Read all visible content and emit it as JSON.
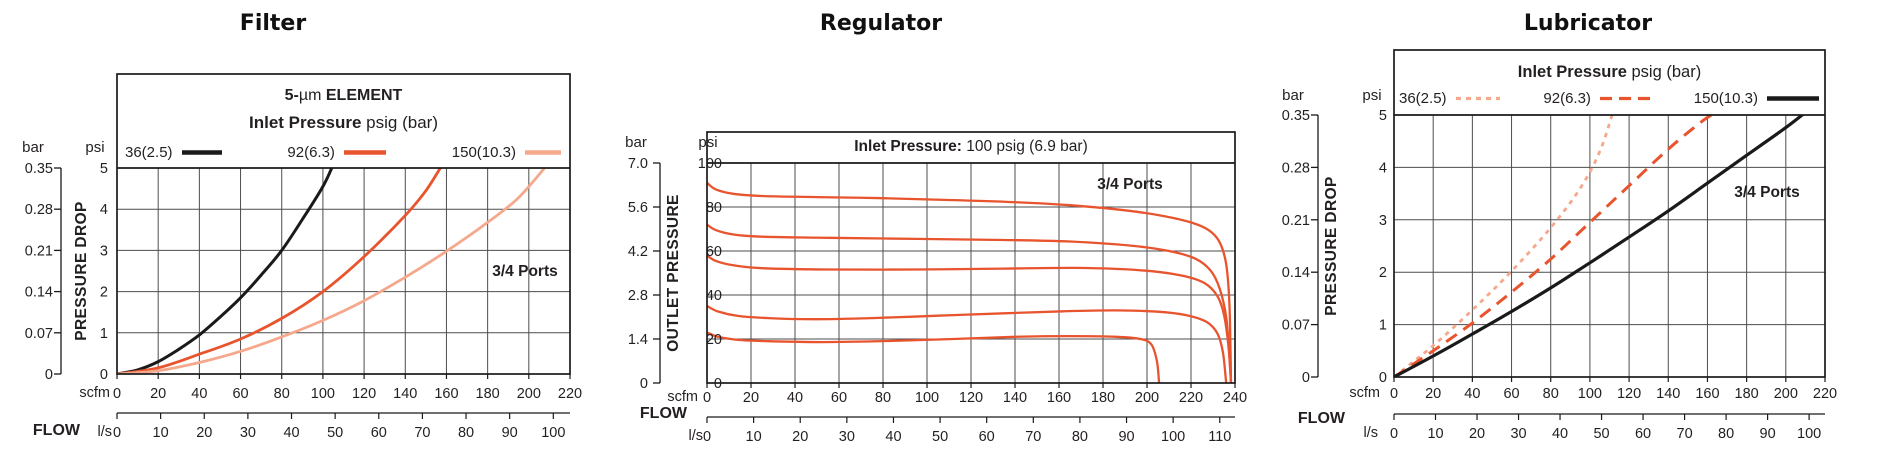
{
  "page": {
    "background": "#ffffff"
  },
  "colors": {
    "black": "#1a1a1a",
    "orange": "#e8542e",
    "salmon": "#f5a88c",
    "grid": "#4d4d4d",
    "border": "#1a1a1a",
    "text": "#231f20"
  },
  "chart_data": [
    {
      "type": "line",
      "title": "Filter",
      "annotation": "3/4 Ports",
      "legend": {
        "line1_prefix": "5-",
        "line1_mu": "µm",
        "line1_suffix": " ELEMENT",
        "line2_bold": "Inlet Pressure",
        "line2_rest": " psig (bar)"
      },
      "x_axis": {
        "label": "FLOW",
        "primary_unit": "scfm",
        "secondary_unit": "l/s",
        "scfm_ticks": [
          0,
          20,
          40,
          60,
          80,
          100,
          120,
          140,
          160,
          180,
          200,
          220
        ],
        "ls_ticks": [
          0,
          10,
          20,
          30,
          40,
          50,
          60,
          70,
          80,
          90,
          100
        ],
        "scfm_range": [
          0,
          220
        ],
        "scfm_per_ls": 2.11888,
        "grid": true
      },
      "y_axis": {
        "label": "PRESSURE DROP",
        "primary_unit": "psi",
        "secondary_unit": "bar",
        "psi_ticks": [
          "5",
          "4",
          "3",
          "2",
          "1",
          "0"
        ],
        "bar_ticks": [
          "0.35",
          "0.28",
          "0.21",
          "0.14",
          "0.07",
          "0"
        ],
        "psi_range": [
          0,
          5
        ],
        "grid": true
      },
      "series": [
        {
          "name": "36(2.5)",
          "color": "black",
          "dash": "solid",
          "points_scfm_psi": [
            [
              0,
              0
            ],
            [
              10,
              0.1
            ],
            [
              20,
              0.3
            ],
            [
              30,
              0.6
            ],
            [
              40,
              0.95
            ],
            [
              50,
              1.38
            ],
            [
              60,
              1.85
            ],
            [
              70,
              2.4
            ],
            [
              80,
              3.0
            ],
            [
              90,
              3.75
            ],
            [
              100,
              4.55
            ],
            [
              105,
              5.08
            ]
          ]
        },
        {
          "name": "92(6.3)",
          "color": "orange",
          "dash": "solid",
          "points_scfm_psi": [
            [
              0,
              0
            ],
            [
              20,
              0.15
            ],
            [
              40,
              0.48
            ],
            [
              60,
              0.85
            ],
            [
              80,
              1.35
            ],
            [
              100,
              2.0
            ],
            [
              120,
              2.85
            ],
            [
              140,
              3.85
            ],
            [
              150,
              4.45
            ],
            [
              158,
              5.08
            ]
          ]
        },
        {
          "name": "150(10.3)",
          "color": "salmon",
          "dash": "solid",
          "points_scfm_psi": [
            [
              0,
              0
            ],
            [
              20,
              0.08
            ],
            [
              40,
              0.28
            ],
            [
              60,
              0.55
            ],
            [
              80,
              0.9
            ],
            [
              100,
              1.3
            ],
            [
              120,
              1.78
            ],
            [
              140,
              2.35
            ],
            [
              160,
              2.98
            ],
            [
              180,
              3.68
            ],
            [
              195,
              4.28
            ],
            [
              209,
              5.08
            ]
          ]
        }
      ]
    },
    {
      "type": "line",
      "title": "Regulator",
      "annotation": "3/4 Ports",
      "legend": {
        "line_bold": "Inlet Pressure:",
        "line_rest": " 100 psig (6.9 bar)"
      },
      "x_axis": {
        "label": "FLOW",
        "primary_unit": "scfm",
        "secondary_unit": "l/s",
        "scfm_ticks": [
          0,
          20,
          40,
          60,
          80,
          100,
          120,
          140,
          160,
          180,
          200,
          220,
          240
        ],
        "ls_ticks": [
          0,
          10,
          20,
          30,
          40,
          50,
          60,
          70,
          80,
          90,
          100,
          110
        ],
        "scfm_range": [
          0,
          240
        ],
        "scfm_per_ls": 2.11888,
        "grid": true
      },
      "y_axis": {
        "label": "OUTLET PRESSURE",
        "primary_unit": "psi",
        "secondary_unit": "bar",
        "psi_ticks": [
          "100",
          "80",
          "60",
          "40",
          "20",
          "0"
        ],
        "bar_ticks": [
          "7.0",
          "5.6",
          "4.2",
          "2.8",
          "1.4",
          "0"
        ],
        "psi_range": [
          0,
          100
        ],
        "grid": true
      },
      "series": [
        {
          "color": "orange",
          "dash": "solid",
          "points_scfm_psi": [
            [
              0,
              91
            ],
            [
              4,
              88
            ],
            [
              12,
              86
            ],
            [
              25,
              85
            ],
            [
              50,
              84.5
            ],
            [
              80,
              84
            ],
            [
              110,
              83.2
            ],
            [
              140,
              82.2
            ],
            [
              165,
              80.8
            ],
            [
              190,
              78.5
            ],
            [
              208,
              75.8
            ],
            [
              220,
              73
            ],
            [
              228,
              69.5
            ],
            [
              233,
              64
            ],
            [
              236,
              54
            ],
            [
              237.5,
              35
            ],
            [
              238.2,
              0
            ]
          ]
        },
        {
          "color": "orange",
          "dash": "solid",
          "points_scfm_psi": [
            [
              0,
              72
            ],
            [
              4,
              69.5
            ],
            [
              12,
              67.5
            ],
            [
              25,
              66.5
            ],
            [
              55,
              66
            ],
            [
              95,
              65.5
            ],
            [
              135,
              65
            ],
            [
              165,
              64.3
            ],
            [
              192,
              62.5
            ],
            [
              210,
              60
            ],
            [
              222,
              56.5
            ],
            [
              229,
              51
            ],
            [
              233,
              43
            ],
            [
              236,
              30
            ],
            [
              237.5,
              12
            ],
            [
              238.2,
              0
            ]
          ]
        },
        {
          "color": "orange",
          "dash": "solid",
          "points_scfm_psi": [
            [
              0,
              58
            ],
            [
              4,
              55.5
            ],
            [
              12,
              53.5
            ],
            [
              25,
              52.2
            ],
            [
              55,
              51.6
            ],
            [
              95,
              51.6
            ],
            [
              135,
              52
            ],
            [
              168,
              52.3
            ],
            [
              196,
              51.3
            ],
            [
              215,
              49
            ],
            [
              226,
              45.5
            ],
            [
              232,
              39.5
            ],
            [
              235,
              31
            ],
            [
              237,
              17
            ],
            [
              238.2,
              0
            ]
          ]
        },
        {
          "color": "orange",
          "dash": "solid",
          "points_scfm_psi": [
            [
              0,
              35
            ],
            [
              5,
              32.5
            ],
            [
              14,
              30.5
            ],
            [
              28,
              29.5
            ],
            [
              48,
              29
            ],
            [
              75,
              29.5
            ],
            [
              105,
              30.6
            ],
            [
              135,
              31.7
            ],
            [
              162,
              32.6
            ],
            [
              186,
              33
            ],
            [
              205,
              32.4
            ],
            [
              218,
              30.8
            ],
            [
              227,
              27.8
            ],
            [
              232,
              22.5
            ],
            [
              234.5,
              14
            ],
            [
              236,
              0
            ]
          ]
        },
        {
          "color": "orange",
          "dash": "solid",
          "points_scfm_psi": [
            [
              0,
              23
            ],
            [
              5,
              21
            ],
            [
              14,
              19.6
            ],
            [
              28,
              19
            ],
            [
              52,
              18.6
            ],
            [
              82,
              19.1
            ],
            [
              112,
              20
            ],
            [
              140,
              21
            ],
            [
              165,
              21.3
            ],
            [
              186,
              21
            ],
            [
              197,
              20
            ],
            [
              202,
              17.5
            ],
            [
              204.5,
              10
            ],
            [
              205.5,
              0
            ]
          ]
        }
      ]
    },
    {
      "type": "line",
      "title": "Lubricator",
      "annotation": "3/4 Ports",
      "legend": {
        "line2_bold": "Inlet Pressure",
        "line2_rest": " psig (bar)"
      },
      "x_axis": {
        "label": "FLOW",
        "primary_unit": "scfm",
        "secondary_unit": "l/s",
        "scfm_ticks": [
          0,
          20,
          40,
          60,
          80,
          100,
          120,
          140,
          160,
          180,
          200,
          220
        ],
        "ls_ticks": [
          0,
          10,
          20,
          30,
          40,
          50,
          60,
          70,
          80,
          90,
          100
        ],
        "scfm_range": [
          0,
          220
        ],
        "scfm_per_ls": 2.11888,
        "grid": true
      },
      "y_axis": {
        "label": "PRESSURE DROP",
        "primary_unit": "psi",
        "secondary_unit": "bar",
        "psi_ticks": [
          "5",
          "4",
          "3",
          "2",
          "1",
          "0"
        ],
        "bar_ticks": [
          "0.35",
          "0.28",
          "0.21",
          "0.14",
          "0.07",
          "0"
        ],
        "psi_range": [
          0,
          5
        ],
        "grid": true
      },
      "series": [
        {
          "name": "36(2.5)",
          "color": "salmon",
          "dash": "dotted",
          "points_scfm_psi": [
            [
              0,
              0
            ],
            [
              20,
              0.6
            ],
            [
              40,
              1.28
            ],
            [
              60,
              2.02
            ],
            [
              80,
              2.85
            ],
            [
              95,
              3.6
            ],
            [
              105,
              4.3
            ],
            [
              112,
              5.08
            ]
          ]
        },
        {
          "name": "92(6.3)",
          "color": "orange",
          "dash": "dashed",
          "points_scfm_psi": [
            [
              0,
              0
            ],
            [
              20,
              0.5
            ],
            [
              40,
              1.03
            ],
            [
              60,
              1.62
            ],
            [
              80,
              2.25
            ],
            [
              100,
              2.95
            ],
            [
              120,
              3.65
            ],
            [
              140,
              4.35
            ],
            [
              158,
              4.9
            ],
            [
              166,
              5.08
            ]
          ]
        },
        {
          "name": "150(10.3)",
          "color": "black",
          "dash": "solid",
          "points_scfm_psi": [
            [
              0,
              0
            ],
            [
              20,
              0.4
            ],
            [
              40,
              0.82
            ],
            [
              60,
              1.25
            ],
            [
              80,
              1.7
            ],
            [
              100,
              2.18
            ],
            [
              120,
              2.67
            ],
            [
              140,
              3.17
            ],
            [
              160,
              3.7
            ],
            [
              180,
              4.23
            ],
            [
              200,
              4.76
            ],
            [
              211,
              5.08
            ]
          ]
        }
      ]
    }
  ]
}
